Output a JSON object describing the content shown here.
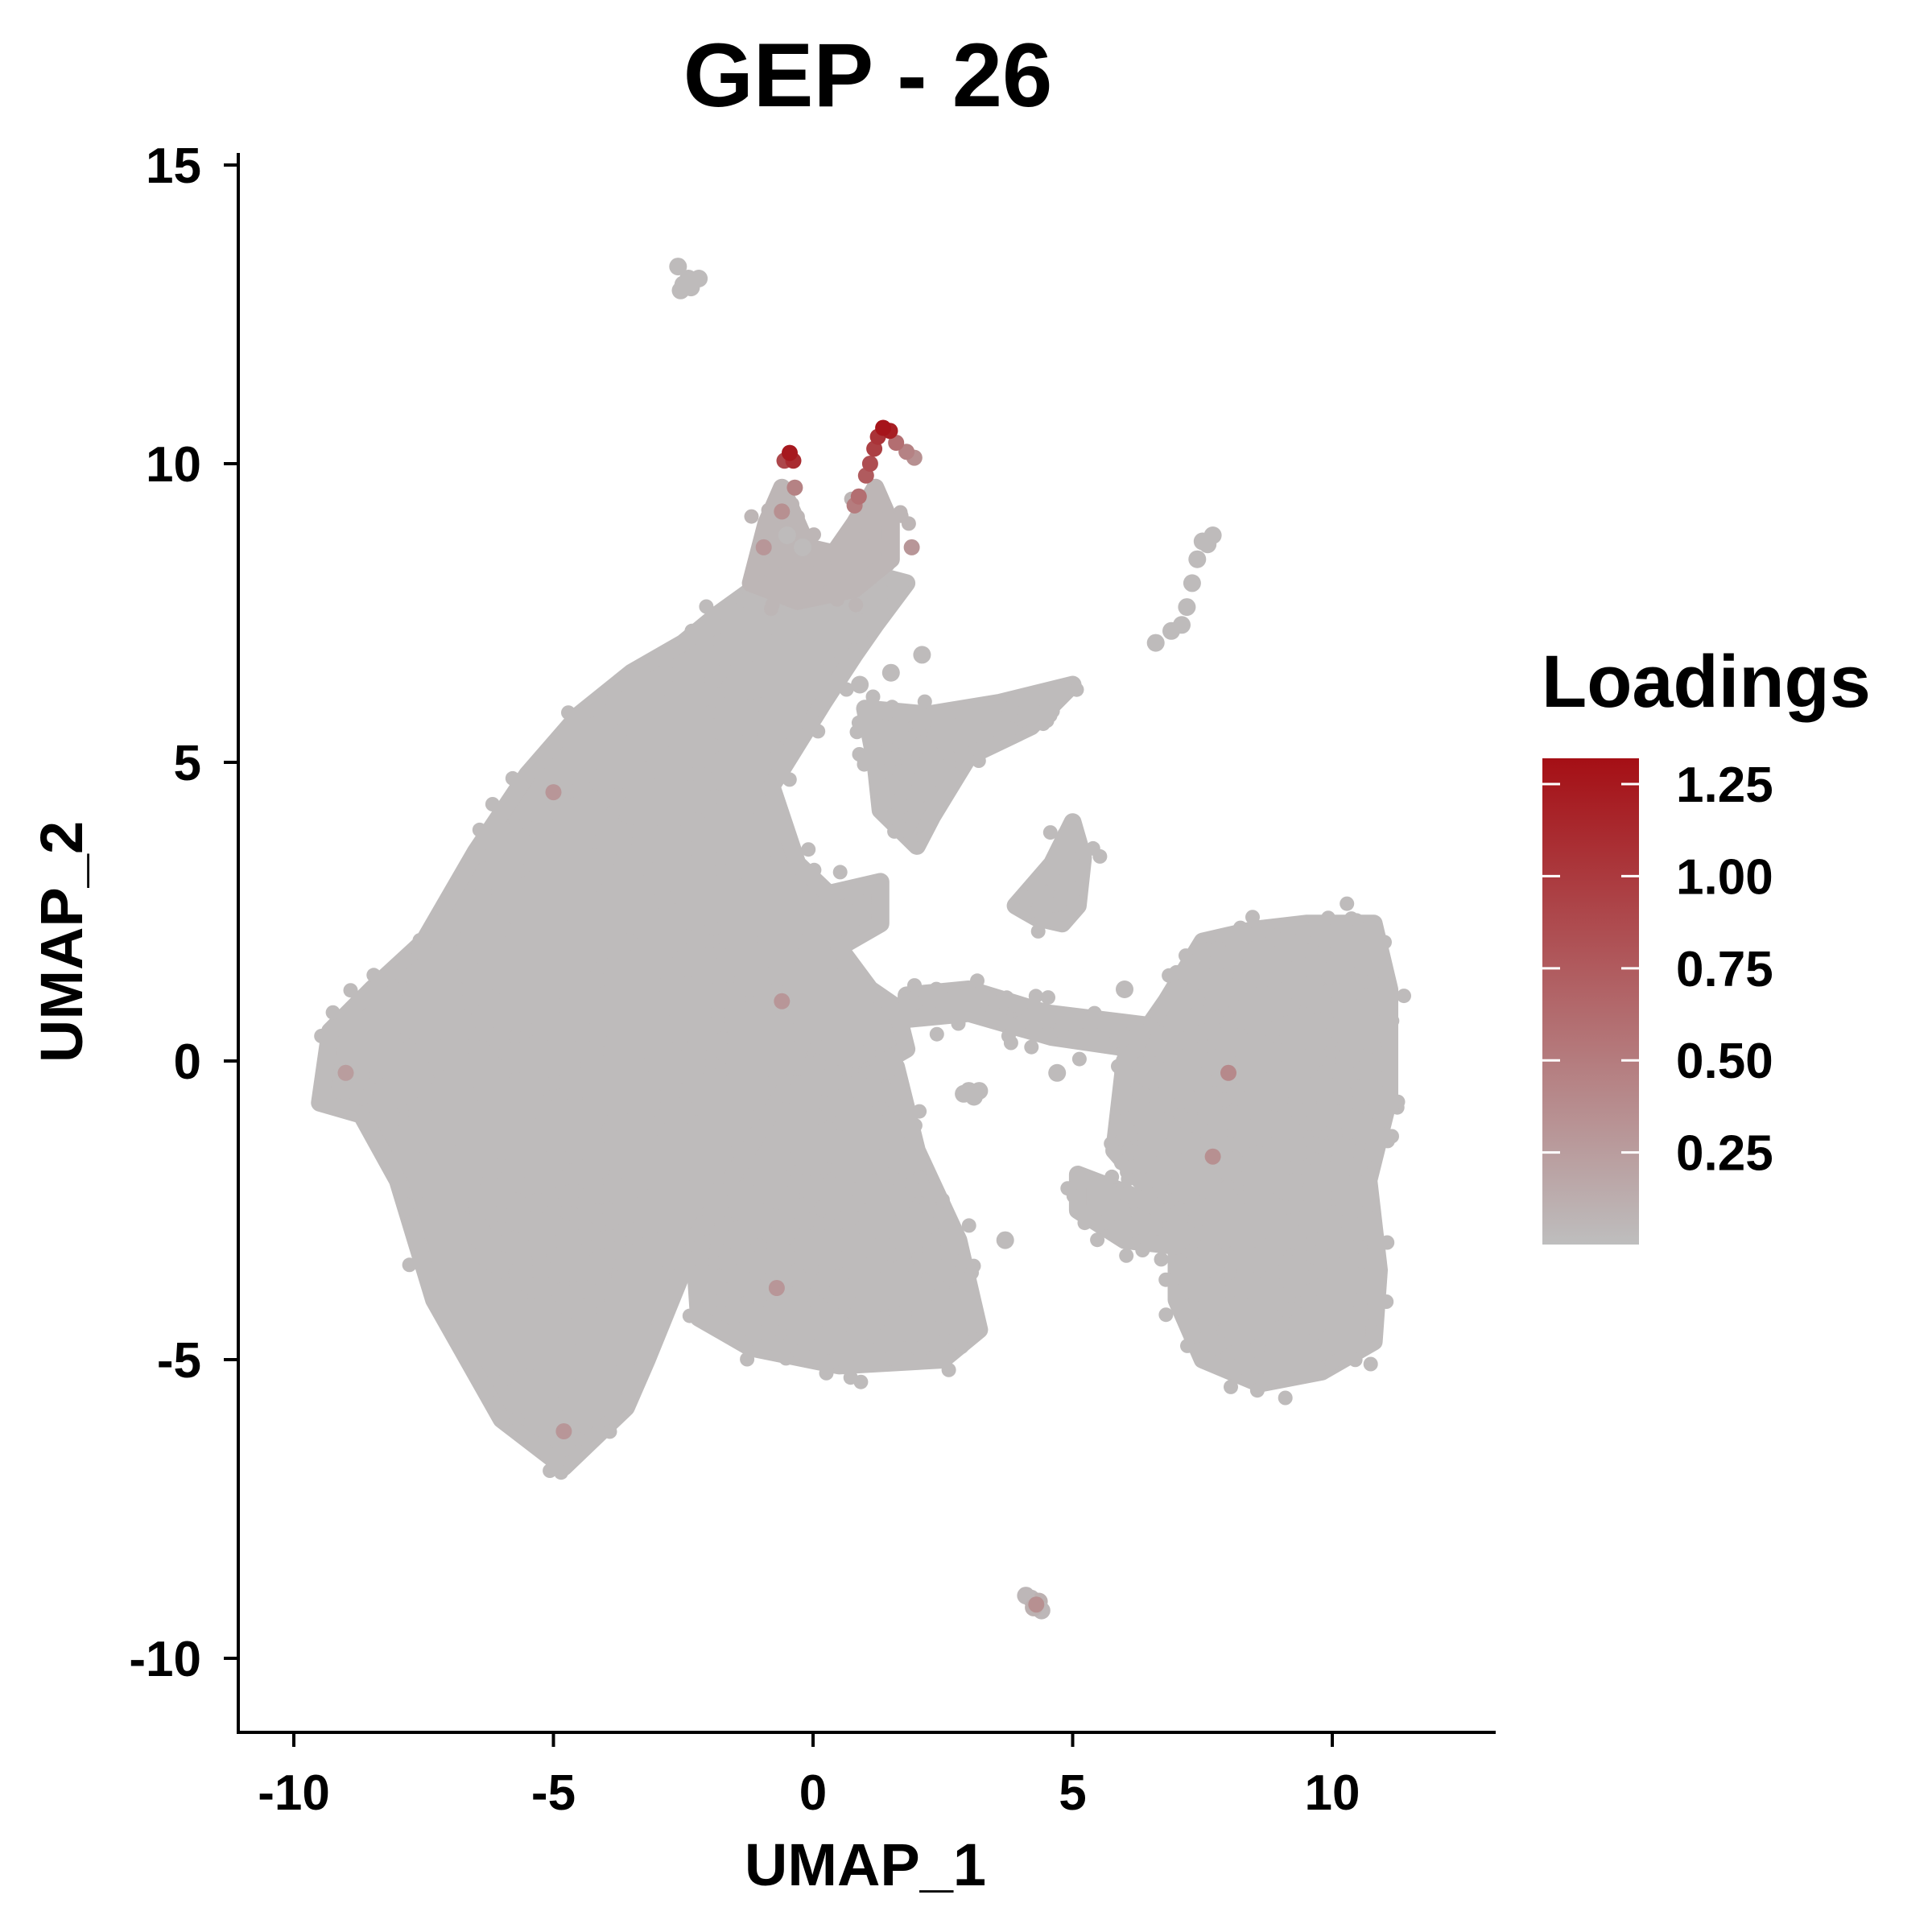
{
  "chart_data": {
    "type": "scatter",
    "title": "GEP - 26",
    "xlabel": "UMAP_1",
    "ylabel": "UMAP_2",
    "xlim": [
      -11.0,
      13.2
    ],
    "ylim": [
      -11.2,
      15.2
    ],
    "x_ticks": [
      -10,
      -5,
      0,
      5,
      10
    ],
    "x_tick_labels": [
      "-10",
      "-5",
      "0",
      "5",
      "10"
    ],
    "y_ticks": [
      -10,
      -5,
      0,
      5,
      10,
      15
    ],
    "y_tick_labels": [
      "-10",
      "-5",
      "0",
      "5",
      "10",
      "15"
    ],
    "grid": false,
    "legend": {
      "title": "Loadings",
      "placement": "right",
      "min": 0.0,
      "max": 1.32,
      "breaks": [
        1.25,
        1.0,
        0.75,
        0.5,
        0.25
      ],
      "labels": [
        "1.25",
        "1.00",
        "0.75",
        "0.50",
        "0.25"
      ],
      "low_color": "#bebebe",
      "high_color": "#a50f15"
    },
    "clusters": [
      {
        "id": "left-main",
        "loading": 0.02,
        "poly": [
          [
            -9.5,
            -0.7
          ],
          [
            -9.3,
            0.5
          ],
          [
            -8.5,
            1.2
          ],
          [
            -7.5,
            2.0
          ],
          [
            -6.5,
            3.5
          ],
          [
            -5.5,
            4.8
          ],
          [
            -4.5,
            5.8
          ],
          [
            -3.5,
            6.5
          ],
          [
            -2.5,
            7.0
          ],
          [
            -1.8,
            7.5
          ],
          [
            -1.0,
            8.0
          ],
          [
            -0.5,
            8.0
          ],
          [
            0.5,
            8.3
          ],
          [
            1.8,
            8.0
          ],
          [
            1.2,
            7.3
          ],
          [
            0.8,
            6.8
          ],
          [
            0.2,
            6.0
          ],
          [
            -0.8,
            4.6
          ],
          [
            -0.3,
            3.3
          ],
          [
            0.3,
            2.8
          ],
          [
            1.3,
            3.0
          ],
          [
            1.3,
            2.3
          ],
          [
            0.5,
            1.9
          ],
          [
            1.1,
            1.2
          ],
          [
            1.6,
            0.9
          ],
          [
            1.8,
            0.2
          ],
          [
            1.0,
            -0.2
          ],
          [
            0.5,
            -1.0
          ],
          [
            -0.5,
            -1.2
          ],
          [
            -1.5,
            -2.2
          ],
          [
            -2.5,
            -3.5
          ],
          [
            -3.2,
            -5.0
          ],
          [
            -3.6,
            -5.8
          ],
          [
            -4.8,
            -6.8
          ],
          [
            -6.0,
            -6.0
          ],
          [
            -7.3,
            -4.0
          ],
          [
            -8.0,
            -2.0
          ],
          [
            -8.7,
            -0.9
          ]
        ]
      },
      {
        "id": "left-lobe-b",
        "loading": 0.02,
        "poly": [
          [
            -6.5,
            -2.2
          ],
          [
            -5.5,
            -2.4
          ],
          [
            -4.6,
            -2.2
          ],
          [
            -3.8,
            -2.9
          ],
          [
            -4.2,
            -3.8
          ],
          [
            -5.2,
            -3.9
          ],
          [
            -6.3,
            -3.3
          ]
        ]
      },
      {
        "id": "center-b",
        "loading": 0.02,
        "poly": [
          [
            -1.6,
            -2.0
          ],
          [
            -0.5,
            -0.4
          ],
          [
            0.8,
            -0.3
          ],
          [
            1.6,
            -0.1
          ],
          [
            2.0,
            -1.5
          ],
          [
            2.8,
            -3.0
          ],
          [
            3.2,
            -4.5
          ],
          [
            2.5,
            -5.0
          ],
          [
            0.5,
            -5.1
          ],
          [
            -1.2,
            -4.8
          ],
          [
            -2.2,
            -4.3
          ],
          [
            -2.3,
            -3.0
          ]
        ]
      },
      {
        "id": "center-arm",
        "loading": 0.02,
        "poly": [
          [
            1.0,
            5.9
          ],
          [
            2.2,
            5.8
          ],
          [
            3.6,
            6.0
          ],
          [
            5.0,
            6.3
          ],
          [
            4.2,
            5.6
          ],
          [
            3.0,
            5.1
          ],
          [
            2.3,
            4.1
          ],
          [
            2.0,
            3.6
          ],
          [
            1.3,
            4.2
          ],
          [
            1.2,
            5.0
          ]
        ]
      },
      {
        "id": "right-main",
        "loading": 0.02,
        "poly": [
          [
            6.8,
            1.0
          ],
          [
            7.5,
            2.0
          ],
          [
            8.5,
            2.2
          ],
          [
            9.5,
            2.3
          ],
          [
            10.8,
            2.3
          ],
          [
            11.1,
            1.2
          ],
          [
            11.1,
            -0.6
          ],
          [
            10.7,
            -2.0
          ],
          [
            10.9,
            -3.5
          ],
          [
            10.8,
            -4.7
          ],
          [
            9.8,
            -5.2
          ],
          [
            8.6,
            -5.4
          ],
          [
            7.5,
            -5.0
          ],
          [
            7.0,
            -4.0
          ],
          [
            7.0,
            -2.5
          ],
          [
            6.3,
            -2.0
          ],
          [
            5.8,
            -1.5
          ],
          [
            6.0,
            0.0
          ]
        ]
      },
      {
        "id": "right-arm",
        "loading": 0.02,
        "poly": [
          [
            5.1,
            -1.9
          ],
          [
            6.0,
            -2.2
          ],
          [
            7.0,
            -2.6
          ],
          [
            7.0,
            -3.1
          ],
          [
            6.0,
            -3.0
          ],
          [
            5.1,
            -2.5
          ]
        ]
      },
      {
        "id": "mid-bridge",
        "loading": 0.02,
        "poly": [
          [
            1.8,
            1.1
          ],
          [
            3.0,
            1.2
          ],
          [
            4.5,
            0.8
          ],
          [
            6.4,
            0.6
          ],
          [
            6.2,
            0.2
          ],
          [
            4.6,
            0.4
          ],
          [
            3.0,
            0.8
          ],
          [
            1.8,
            0.7
          ]
        ]
      },
      {
        "id": "mid-spur",
        "loading": 0.02,
        "poly": [
          [
            3.9,
            2.6
          ],
          [
            4.6,
            3.3
          ],
          [
            5.0,
            4.0
          ],
          [
            5.2,
            3.4
          ],
          [
            5.1,
            2.6
          ],
          [
            4.8,
            2.3
          ],
          [
            4.3,
            2.4
          ]
        ]
      },
      {
        "id": "top-stalk",
        "loading": 0.06,
        "poly": [
          [
            -1.2,
            8.0
          ],
          [
            -0.9,
            9.0
          ],
          [
            -0.6,
            9.6
          ],
          [
            -0.4,
            9.2
          ],
          [
            -0.1,
            8.6
          ],
          [
            0.4,
            8.5
          ],
          [
            0.8,
            9.0
          ],
          [
            1.2,
            9.6
          ],
          [
            1.5,
            9.0
          ],
          [
            1.5,
            8.4
          ],
          [
            0.8,
            7.9
          ],
          [
            -0.3,
            7.7
          ]
        ]
      }
    ],
    "hotspots": [
      {
        "x": -0.45,
        "y": 10.18,
        "loading": 1.25
      },
      {
        "x": -0.38,
        "y": 10.05,
        "loading": 1.1
      },
      {
        "x": -0.55,
        "y": 10.05,
        "loading": 0.9
      },
      {
        "x": 1.35,
        "y": 10.6,
        "loading": 1.28
      },
      {
        "x": 1.48,
        "y": 10.55,
        "loading": 1.2
      },
      {
        "x": 1.25,
        "y": 10.45,
        "loading": 1.05
      },
      {
        "x": 1.18,
        "y": 10.25,
        "loading": 0.95
      },
      {
        "x": 1.1,
        "y": 10.0,
        "loading": 0.85
      },
      {
        "x": 1.02,
        "y": 9.8,
        "loading": 0.75
      },
      {
        "x": 0.88,
        "y": 9.45,
        "loading": 0.6
      },
      {
        "x": 0.8,
        "y": 9.3,
        "loading": 0.5
      },
      {
        "x": 1.6,
        "y": 10.35,
        "loading": 0.6
      },
      {
        "x": 1.8,
        "y": 10.2,
        "loading": 0.45
      },
      {
        "x": 1.95,
        "y": 10.1,
        "loading": 0.35
      },
      {
        "x": -0.35,
        "y": 9.6,
        "loading": 0.45
      },
      {
        "x": -0.6,
        "y": 9.2,
        "loading": 0.35
      },
      {
        "x": -0.95,
        "y": 8.6,
        "loading": 0.3
      },
      {
        "x": 1.9,
        "y": 8.6,
        "loading": 0.3
      },
      {
        "x": 8.0,
        "y": -0.2,
        "loading": 0.4
      },
      {
        "x": 7.7,
        "y": -1.6,
        "loading": 0.35
      },
      {
        "x": 4.3,
        "y": -9.1,
        "loading": 0.35
      },
      {
        "x": -4.8,
        "y": -6.2,
        "loading": 0.3
      },
      {
        "x": -5.0,
        "y": 4.5,
        "loading": 0.3
      },
      {
        "x": -0.6,
        "y": 1.0,
        "loading": 0.3
      },
      {
        "x": -9.0,
        "y": -0.2,
        "loading": 0.25
      },
      {
        "x": -0.7,
        "y": -3.8,
        "loading": 0.3
      }
    ],
    "islands": [
      {
        "x": -2.5,
        "y": 13.0,
        "loading": 0.02
      },
      {
        "x": -2.4,
        "y": 13.1,
        "loading": 0.02
      },
      {
        "x": -2.6,
        "y": 13.3,
        "loading": 0.02
      },
      {
        "x": -2.35,
        "y": 12.95,
        "loading": 0.02
      },
      {
        "x": -2.55,
        "y": 12.9,
        "loading": 0.02
      },
      {
        "x": -2.2,
        "y": 13.1,
        "loading": 0.02
      },
      {
        "x": 4.2,
        "y": -9.0,
        "loading": 0.05
      },
      {
        "x": 4.35,
        "y": -9.05,
        "loading": 0.1
      },
      {
        "x": 4.1,
        "y": -8.95,
        "loading": 0.05
      },
      {
        "x": 4.4,
        "y": -9.2,
        "loading": 0.05
      },
      {
        "x": 4.25,
        "y": -9.15,
        "loading": 0.1
      },
      {
        "x": 3.2,
        "y": -0.5,
        "loading": 0.02
      },
      {
        "x": 3.0,
        "y": -0.5,
        "loading": 0.02
      },
      {
        "x": 3.1,
        "y": -0.6,
        "loading": 0.02
      },
      {
        "x": 2.9,
        "y": -0.55,
        "loading": 0.02
      },
      {
        "x": 7.5,
        "y": 8.7,
        "loading": 0.02
      },
      {
        "x": 7.4,
        "y": 8.4,
        "loading": 0.02
      },
      {
        "x": 7.3,
        "y": 8.0,
        "loading": 0.02
      },
      {
        "x": 7.2,
        "y": 7.6,
        "loading": 0.02
      },
      {
        "x": 7.1,
        "y": 7.3,
        "loading": 0.02
      },
      {
        "x": 6.9,
        "y": 7.2,
        "loading": 0.02
      },
      {
        "x": 6.6,
        "y": 7.0,
        "loading": 0.02
      },
      {
        "x": 7.7,
        "y": 8.8,
        "loading": 0.02
      },
      {
        "x": 7.6,
        "y": 8.65,
        "loading": 0.02
      },
      {
        "x": 2.1,
        "y": 6.8,
        "loading": 0.02
      },
      {
        "x": 1.5,
        "y": 6.5,
        "loading": 0.02
      },
      {
        "x": 0.9,
        "y": 6.3,
        "loading": 0.02
      },
      {
        "x": 2.0,
        "y": -3.0,
        "loading": 0.02
      },
      {
        "x": 3.7,
        "y": -3.0,
        "loading": 0.02
      },
      {
        "x": 4.7,
        "y": -0.2,
        "loading": 0.02
      },
      {
        "x": 6.0,
        "y": 1.2,
        "loading": 0.02
      },
      {
        "x": -0.5,
        "y": 8.8,
        "loading": 0.02
      },
      {
        "x": -0.2,
        "y": 8.6,
        "loading": 0.02
      }
    ]
  }
}
